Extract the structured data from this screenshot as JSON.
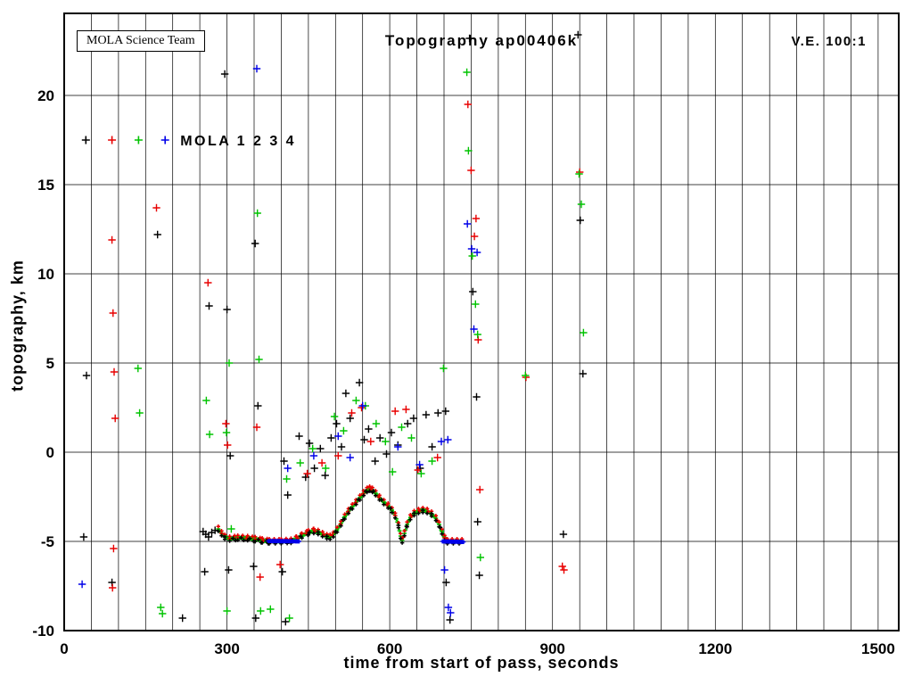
{
  "chart_data": {
    "type": "scatter",
    "title": "Topography ap00406k",
    "xlabel": "time from start of pass, seconds",
    "ylabel": "topography, km",
    "xlim": [
      0,
      1538
    ],
    "ylim": [
      -10,
      24.6
    ],
    "x_ticks": [
      0,
      300,
      600,
      900,
      1200,
      1500
    ],
    "y_ticks": [
      -10,
      -5,
      0,
      5,
      10,
      15,
      20
    ],
    "x_grid_step": 50,
    "x_grid_max": 1500,
    "y_grid_step": 5,
    "y_grid_max": 20,
    "grid": true,
    "annotations": {
      "credit": "MOLA Science Team",
      "ve": "V.E. 100:1"
    },
    "legend": {
      "text": "MOLA 1 2 3 4",
      "labels": [
        "MOLA 1",
        "MOLA 2",
        "MOLA 3",
        "MOLA 4"
      ],
      "colors": [
        "#000000",
        "#e80000",
        "#00c400",
        "#0000e8"
      ],
      "y": 17.5,
      "marker_ts": [
        40,
        88,
        137,
        186
      ],
      "text_t": 214,
      "position": "upper-left"
    },
    "track": {
      "step": 2,
      "color_cycle": [
        "#00c400",
        "#00c400",
        "#00c400",
        "#e80000",
        "#00c400",
        "#00c400",
        "#000000",
        "#00c400"
      ],
      "profile": [
        [
          284,
          -4.3
        ],
        [
          290,
          -4.55
        ],
        [
          296,
          -4.75
        ],
        [
          305,
          -4.85
        ],
        [
          320,
          -4.8
        ],
        [
          338,
          -4.82
        ],
        [
          352,
          -4.88
        ],
        [
          365,
          -4.95
        ],
        [
          378,
          -5.0
        ],
        [
          400,
          -5.0
        ],
        [
          418,
          -4.97
        ],
        [
          428,
          -4.85
        ],
        [
          438,
          -4.68
        ],
        [
          450,
          -4.5
        ],
        [
          460,
          -4.42
        ],
        [
          468,
          -4.48
        ],
        [
          476,
          -4.6
        ],
        [
          484,
          -4.72
        ],
        [
          490,
          -4.75
        ],
        [
          496,
          -4.62
        ],
        [
          503,
          -4.35
        ],
        [
          510,
          -4.0
        ],
        [
          517,
          -3.62
        ],
        [
          524,
          -3.3
        ],
        [
          531,
          -3.05
        ],
        [
          538,
          -2.8
        ],
        [
          545,
          -2.55
        ],
        [
          552,
          -2.3
        ],
        [
          558,
          -2.12
        ],
        [
          563,
          -2.05
        ],
        [
          568,
          -2.12
        ],
        [
          574,
          -2.3
        ],
        [
          581,
          -2.55
        ],
        [
          589,
          -2.8
        ],
        [
          597,
          -3.0
        ],
        [
          604,
          -3.25
        ],
        [
          610,
          -3.55
        ],
        [
          616,
          -4.1
        ],
        [
          620,
          -4.7
        ],
        [
          623,
          -4.95
        ],
        [
          627,
          -4.55
        ],
        [
          632,
          -4.05
        ],
        [
          638,
          -3.65
        ],
        [
          645,
          -3.42
        ],
        [
          653,
          -3.3
        ],
        [
          661,
          -3.25
        ],
        [
          669,
          -3.3
        ],
        [
          677,
          -3.45
        ],
        [
          685,
          -3.7
        ],
        [
          691,
          -4.05
        ],
        [
          696,
          -4.45
        ],
        [
          701,
          -4.8
        ],
        [
          706,
          -5.0
        ],
        [
          734,
          -5.0
        ]
      ],
      "overlays": [
        {
          "color": "#e80000",
          "dv": 0.14,
          "step": 9
        },
        {
          "color": "#000000",
          "dv": -0.13,
          "step": 11
        }
      ],
      "flats": [
        {
          "color": "#0000e8",
          "pts": [
            [
              376,
              -4.98
            ],
            [
              433,
              -5.0
            ]
          ]
        },
        {
          "color": "#0000e8",
          "pts": [
            [
              697,
              -5.0
            ],
            [
              736,
              -5.03
            ]
          ]
        }
      ]
    },
    "series": [
      {
        "name": "MOLA 1",
        "color": "#000000",
        "points": [
          [
            41,
            4.3
          ],
          [
            36,
            -4.75
          ],
          [
            88,
            -7.3
          ],
          [
            172,
            12.2
          ],
          [
            218,
            -9.3
          ],
          [
            267,
            8.2
          ],
          [
            256,
            -4.45
          ],
          [
            261,
            -4.6
          ],
          [
            266,
            -4.75
          ],
          [
            272,
            -4.5
          ],
          [
            278,
            -4.38
          ],
          [
            259,
            -6.7
          ],
          [
            296,
            21.2
          ],
          [
            300,
            8.0
          ],
          [
            306,
            -0.2
          ],
          [
            303,
            -6.6
          ],
          [
            352,
            11.7
          ],
          [
            357,
            2.6
          ],
          [
            349,
            -6.4
          ],
          [
            353,
            -9.3
          ],
          [
            402,
            -6.7
          ],
          [
            408,
            -9.5
          ],
          [
            405,
            -0.5
          ],
          [
            412,
            -2.4
          ],
          [
            433,
            0.9
          ],
          [
            445,
            -1.4
          ],
          [
            452,
            0.5
          ],
          [
            461,
            -0.9
          ],
          [
            472,
            0.2
          ],
          [
            481,
            -1.3
          ],
          [
            492,
            0.8
          ],
          [
            502,
            1.6
          ],
          [
            511,
            0.3
          ],
          [
            519,
            3.3
          ],
          [
            527,
            1.9
          ],
          [
            544,
            3.9
          ],
          [
            553,
            0.7
          ],
          [
            561,
            1.3
          ],
          [
            573,
            -0.5
          ],
          [
            582,
            0.8
          ],
          [
            594,
            -0.1
          ],
          [
            603,
            1.1
          ],
          [
            615,
            0.4
          ],
          [
            633,
            1.6
          ],
          [
            644,
            1.9
          ],
          [
            656,
            -0.9
          ],
          [
            667,
            2.1
          ],
          [
            678,
            0.3
          ],
          [
            689,
            2.2
          ],
          [
            703,
            2.3
          ],
          [
            704,
            -7.3
          ],
          [
            711,
            -9.4
          ],
          [
            747,
            23.2
          ],
          [
            753,
            9.0
          ],
          [
            760,
            3.1
          ],
          [
            762,
            -3.9
          ],
          [
            765,
            -6.9
          ],
          [
            920,
            -4.6
          ],
          [
            947,
            23.4
          ],
          [
            951,
            13.0
          ],
          [
            956,
            4.4
          ]
        ]
      },
      {
        "name": "MOLA 2",
        "color": "#e80000",
        "points": [
          [
            88,
            11.9
          ],
          [
            90,
            7.8
          ],
          [
            92,
            4.5
          ],
          [
            94,
            1.9
          ],
          [
            91,
            -5.4
          ],
          [
            89,
            -7.6
          ],
          [
            170,
            13.7
          ],
          [
            265,
            9.5
          ],
          [
            301,
            0.4
          ],
          [
            298,
            1.6
          ],
          [
            355,
            1.4
          ],
          [
            361,
            -7.0
          ],
          [
            398,
            -6.3
          ],
          [
            448,
            -1.2
          ],
          [
            475,
            -0.6
          ],
          [
            505,
            -0.2
          ],
          [
            530,
            2.2
          ],
          [
            548,
            2.5
          ],
          [
            565,
            0.6
          ],
          [
            610,
            2.3
          ],
          [
            630,
            2.4
          ],
          [
            652,
            -1.0
          ],
          [
            688,
            -0.3
          ],
          [
            744,
            19.5
          ],
          [
            750,
            15.8
          ],
          [
            756,
            12.1
          ],
          [
            759,
            13.1
          ],
          [
            763,
            6.3
          ],
          [
            766,
            -2.1
          ],
          [
            851,
            4.2
          ],
          [
            918,
            -6.4
          ],
          [
            921,
            -6.6
          ],
          [
            950,
            15.7
          ]
        ]
      },
      {
        "name": "MOLA 3",
        "color": "#00c400",
        "points": [
          [
            136,
            4.7
          ],
          [
            139,
            2.2
          ],
          [
            178,
            -8.7
          ],
          [
            181,
            -9.05
          ],
          [
            262,
            2.9
          ],
          [
            268,
            1.0
          ],
          [
            304,
            5.0
          ],
          [
            299,
            1.1
          ],
          [
            300,
            -8.9
          ],
          [
            308,
            -4.3
          ],
          [
            356,
            13.4
          ],
          [
            359,
            5.2
          ],
          [
            362,
            -8.9
          ],
          [
            380,
            -8.8
          ],
          [
            410,
            -1.5
          ],
          [
            415,
            -9.3
          ],
          [
            435,
            -0.6
          ],
          [
            458,
            0.2
          ],
          [
            482,
            -0.9
          ],
          [
            498,
            2.0
          ],
          [
            515,
            1.2
          ],
          [
            538,
            2.9
          ],
          [
            555,
            2.6
          ],
          [
            575,
            1.6
          ],
          [
            592,
            0.6
          ],
          [
            605,
            -1.1
          ],
          [
            622,
            1.4
          ],
          [
            640,
            0.8
          ],
          [
            658,
            -1.2
          ],
          [
            678,
            -0.5
          ],
          [
            699,
            4.7
          ],
          [
            742,
            21.3
          ],
          [
            745,
            16.9
          ],
          [
            752,
            11.0
          ],
          [
            758,
            8.3
          ],
          [
            762,
            6.6
          ],
          [
            767,
            -5.9
          ],
          [
            850,
            4.3
          ],
          [
            949,
            15.6
          ],
          [
            953,
            13.9
          ],
          [
            957,
            6.7
          ]
        ]
      },
      {
        "name": "MOLA 4",
        "color": "#0000e8",
        "points": [
          [
            33,
            -7.4
          ],
          [
            355,
            21.5
          ],
          [
            412,
            -0.9
          ],
          [
            460,
            -0.2
          ],
          [
            505,
            0.9
          ],
          [
            527,
            -0.3
          ],
          [
            550,
            2.6
          ],
          [
            615,
            0.3
          ],
          [
            655,
            -0.7
          ],
          [
            695,
            0.6
          ],
          [
            701,
            -6.6
          ],
          [
            707,
            0.7
          ],
          [
            708,
            -8.7
          ],
          [
            712,
            -9.0
          ],
          [
            743,
            12.8
          ],
          [
            751,
            11.4
          ],
          [
            755,
            6.9
          ],
          [
            761,
            11.2
          ]
        ]
      }
    ]
  }
}
